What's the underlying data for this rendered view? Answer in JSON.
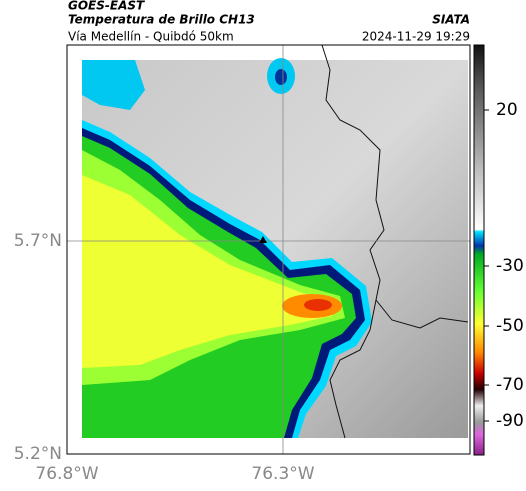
{
  "header": {
    "title": "GOES-EAST",
    "subtitle": "Temperatura de Brillo CH13",
    "route": "Vía Medellín - Quibdó 50km",
    "source": "SIATA",
    "timestamp": "2024-11-29 19:29"
  },
  "map": {
    "lat_labels": [
      "5.7°N",
      "5.2°N"
    ],
    "lon_labels": [
      "76.8°W",
      "76.3°W"
    ]
  },
  "colorbar": {
    "ticks": [
      20,
      -30,
      -50,
      -70,
      -90
    ]
  }
}
